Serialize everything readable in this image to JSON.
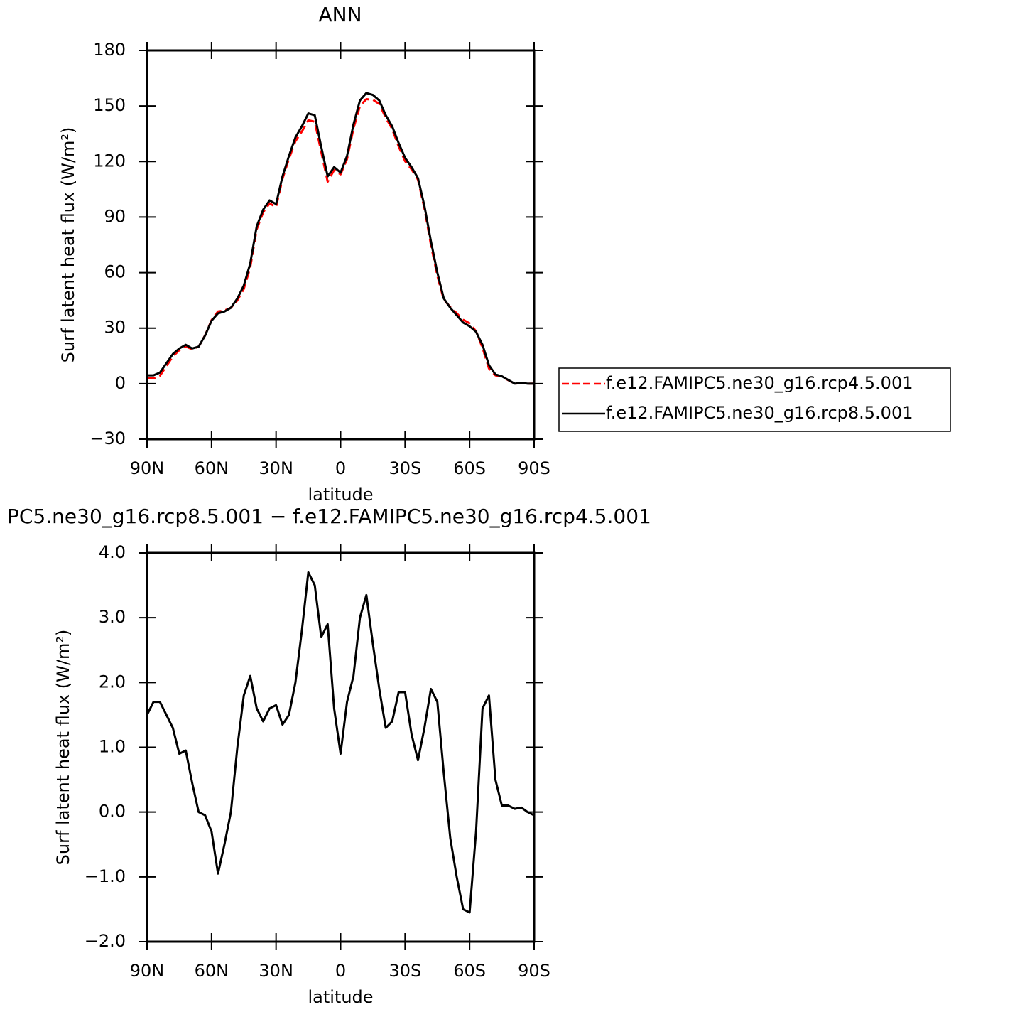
{
  "chart_data": [
    {
      "type": "line",
      "title": "ANN",
      "y_label": "Surf latent heat flux (W/m²)",
      "x_label": "latitude",
      "x": [
        90,
        87,
        84,
        81,
        78,
        75,
        72,
        69,
        66,
        63,
        60,
        57,
        54,
        51,
        48,
        45,
        42,
        39,
        36,
        33,
        30,
        27,
        24,
        21,
        18,
        15,
        12,
        9,
        6,
        3,
        0,
        -3,
        -6,
        -9,
        -12,
        -15,
        -18,
        -21,
        -24,
        -27,
        -30,
        -33,
        -36,
        -39,
        -42,
        -45,
        -48,
        -51,
        -54,
        -57,
        -60,
        -63,
        -66,
        -69,
        -72,
        -75,
        -78,
        -81,
        -84,
        -87,
        -90
      ],
      "xlim": [
        90,
        -90
      ],
      "xticks": [
        {
          "value": 90,
          "label": "90N"
        },
        {
          "value": 60,
          "label": "60N"
        },
        {
          "value": 30,
          "label": "30N"
        },
        0,
        {
          "value": -30,
          "label": "30S"
        },
        {
          "value": -60,
          "label": "60S"
        },
        {
          "value": -90,
          "label": "90S"
        }
      ],
      "ylim": [
        -30,
        180
      ],
      "yticks": [
        {
          "value": -30,
          "label": "−30"
        },
        0,
        30,
        60,
        90,
        120,
        150,
        180
      ],
      "legend": "right",
      "series": [
        {
          "name": "f.e12.FAMIPC5.ne30_g16.rcp4.5.001",
          "color": "#ff0000",
          "linestyle": "dashed",
          "values": [
            3.0,
            2.8,
            4.3,
            9.5,
            14.7,
            18.1,
            20.1,
            18.6,
            20,
            26.1,
            34.3,
            39.0,
            39.5,
            41,
            45,
            51.2,
            62.9,
            83.4,
            92.6,
            97.4,
            95.4,
            110.7,
            121.5,
            131,
            136.2,
            142.3,
            141.5,
            125.3,
            109.1,
            115.4,
            113.1,
            121.3,
            137.9,
            150,
            153.7,
            153.4,
            151.1,
            143.7,
            137.6,
            128.2,
            120.2,
            115.8,
            110.2,
            94.7,
            75.1,
            58.3,
            45.4,
            41.4,
            38,
            34.5,
            32.6,
            28.3,
            19.4,
            8.2,
            4.5,
            3.9,
            1.9,
            -0.05,
            0.43,
            0,
            0.05
          ]
        },
        {
          "name": "f.e12.FAMIPC5.ne30_g16.rcp8.5.001",
          "color": "#000000",
          "linestyle": "solid",
          "values": [
            4.5,
            4.5,
            6,
            11,
            16,
            19,
            21,
            19,
            20,
            26,
            34,
            38,
            39,
            41,
            46,
            53,
            65,
            85,
            94,
            99,
            97,
            112,
            123,
            133,
            139,
            146,
            145,
            128,
            112,
            117,
            114,
            123,
            140,
            153,
            157,
            156,
            153,
            145,
            139,
            130,
            122,
            117,
            111,
            96,
            77,
            60,
            46,
            41,
            37,
            33,
            31,
            28,
            21,
            10,
            5,
            4,
            2,
            0,
            0.5,
            0,
            0
          ]
        }
      ]
    },
    {
      "type": "line",
      "title": "PC5.ne30_g16.rcp8.5.001 − f.e12.FAMIPC5.ne30_g16.rcp4.5.001",
      "y_label": "Surf latent heat flux (W/m²)",
      "x_label": "latitude",
      "x": [
        90,
        87,
        84,
        81,
        78,
        75,
        72,
        69,
        66,
        63,
        60,
        57,
        54,
        51,
        48,
        45,
        42,
        39,
        36,
        33,
        30,
        27,
        24,
        21,
        18,
        15,
        12,
        9,
        6,
        3,
        0,
        -3,
        -6,
        -9,
        -12,
        -15,
        -18,
        -21,
        -24,
        -27,
        -30,
        -33,
        -36,
        -39,
        -42,
        -45,
        -48,
        -51,
        -54,
        -57,
        -60,
        -63,
        -66,
        -69,
        -72,
        -75,
        -78,
        -81,
        -84,
        -87,
        -90
      ],
      "xlim": [
        90,
        -90
      ],
      "xticks": [
        {
          "value": 90,
          "label": "90N"
        },
        {
          "value": 60,
          "label": "60N"
        },
        {
          "value": 30,
          "label": "30N"
        },
        0,
        {
          "value": -30,
          "label": "30S"
        },
        {
          "value": -60,
          "label": "60S"
        },
        {
          "value": -90,
          "label": "90S"
        }
      ],
      "ylim": [
        -2,
        4
      ],
      "yticks": [
        {
          "value": -2,
          "label": "−2.0"
        },
        {
          "value": -1,
          "label": "−1.0"
        },
        {
          "value": 0,
          "label": "0.0"
        },
        {
          "value": 1,
          "label": "1.0"
        },
        {
          "value": 2,
          "label": "2.0"
        },
        {
          "value": 3,
          "label": "3.0"
        },
        {
          "value": 4,
          "label": "4.0"
        }
      ],
      "series": [
        {
          "color": "#000000",
          "linestyle": "solid",
          "values": [
            1.5,
            1.7,
            1.7,
            1.5,
            1.3,
            0.9,
            0.95,
            0.45,
            0.0,
            -0.05,
            -0.3,
            -0.95,
            -0.5,
            0.0,
            1.0,
            1.8,
            2.1,
            1.6,
            1.4,
            1.6,
            1.65,
            1.35,
            1.5,
            2.0,
            2.8,
            3.7,
            3.5,
            2.7,
            2.9,
            1.6,
            0.9,
            1.7,
            2.1,
            3.0,
            3.35,
            2.6,
            1.9,
            1.3,
            1.4,
            1.85,
            1.85,
            1.2,
            0.8,
            1.3,
            1.9,
            1.7,
            0.6,
            -0.4,
            -1.0,
            -1.5,
            -1.55,
            -0.3,
            1.6,
            1.8,
            0.5,
            0.1,
            0.1,
            0.05,
            0.07,
            0.0,
            -0.05
          ]
        }
      ]
    }
  ]
}
